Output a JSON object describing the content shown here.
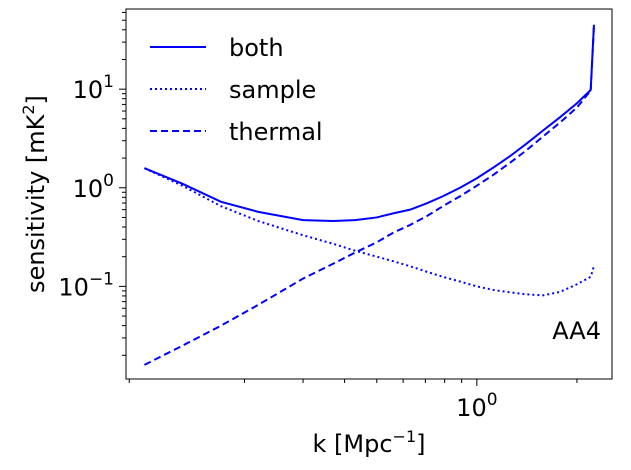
{
  "chart_data": {
    "type": "line",
    "xscale": "log",
    "yscale": "log",
    "xlim": [
      0.088,
      2.55
    ],
    "ylim": [
      0.0115,
      65
    ],
    "xlabel_base": "k [Mpc",
    "xlabel_exp": "−1",
    "xlabel_end": "]",
    "ylabel_base": "sensitivity [mK",
    "ylabel_exp": "2",
    "ylabel_end": "]",
    "annotation": "AA4",
    "legend_loc": "upper-left",
    "grid": false,
    "color": "#0000ff",
    "x_major_ticks": [
      {
        "value": 1,
        "base": "10",
        "exp": "0"
      }
    ],
    "y_major_ticks": [
      {
        "value": 0.1,
        "base": "10",
        "exp": "−1"
      },
      {
        "value": 1,
        "base": "10",
        "exp": "0"
      },
      {
        "value": 10,
        "base": "10",
        "exp": "1"
      }
    ],
    "series": [
      {
        "name": "both",
        "style": "solid",
        "x": [
          0.1,
          0.13,
          0.17,
          0.22,
          0.3,
          0.37,
          0.43,
          0.5,
          0.56,
          0.63,
          0.71,
          0.79,
          0.89,
          1.0,
          1.12,
          1.26,
          1.41,
          1.58,
          1.78,
          2.0,
          2.2,
          2.25
        ],
        "y": [
          1.58,
          1.1,
          0.72,
          0.57,
          0.47,
          0.46,
          0.47,
          0.5,
          0.55,
          0.6,
          0.7,
          0.82,
          1.0,
          1.25,
          1.6,
          2.1,
          2.8,
          3.8,
          5.2,
          7.2,
          9.8,
          45
        ]
      },
      {
        "name": "sample",
        "style": "dotted",
        "x": [
          0.1,
          0.13,
          0.17,
          0.22,
          0.3,
          0.37,
          0.43,
          0.5,
          0.56,
          0.63,
          0.71,
          0.79,
          0.89,
          1.0,
          1.12,
          1.26,
          1.41,
          1.58,
          1.78,
          2.0,
          2.2,
          2.25
        ],
        "y": [
          1.58,
          1.05,
          0.65,
          0.46,
          0.33,
          0.27,
          0.23,
          0.2,
          0.18,
          0.16,
          0.14,
          0.125,
          0.112,
          0.1,
          0.092,
          0.087,
          0.083,
          0.081,
          0.088,
          0.105,
          0.125,
          0.16
        ]
      },
      {
        "name": "thermal",
        "style": "dashed",
        "x": [
          0.1,
          0.13,
          0.17,
          0.22,
          0.3,
          0.37,
          0.43,
          0.5,
          0.56,
          0.63,
          0.71,
          0.79,
          0.89,
          1.0,
          1.12,
          1.26,
          1.41,
          1.58,
          1.78,
          2.0,
          2.2,
          2.25
        ],
        "y": [
          0.016,
          0.025,
          0.04,
          0.065,
          0.12,
          0.17,
          0.22,
          0.28,
          0.35,
          0.42,
          0.52,
          0.65,
          0.82,
          1.05,
          1.35,
          1.8,
          2.4,
          3.3,
          4.6,
          6.5,
          9.7,
          43
        ]
      }
    ]
  }
}
